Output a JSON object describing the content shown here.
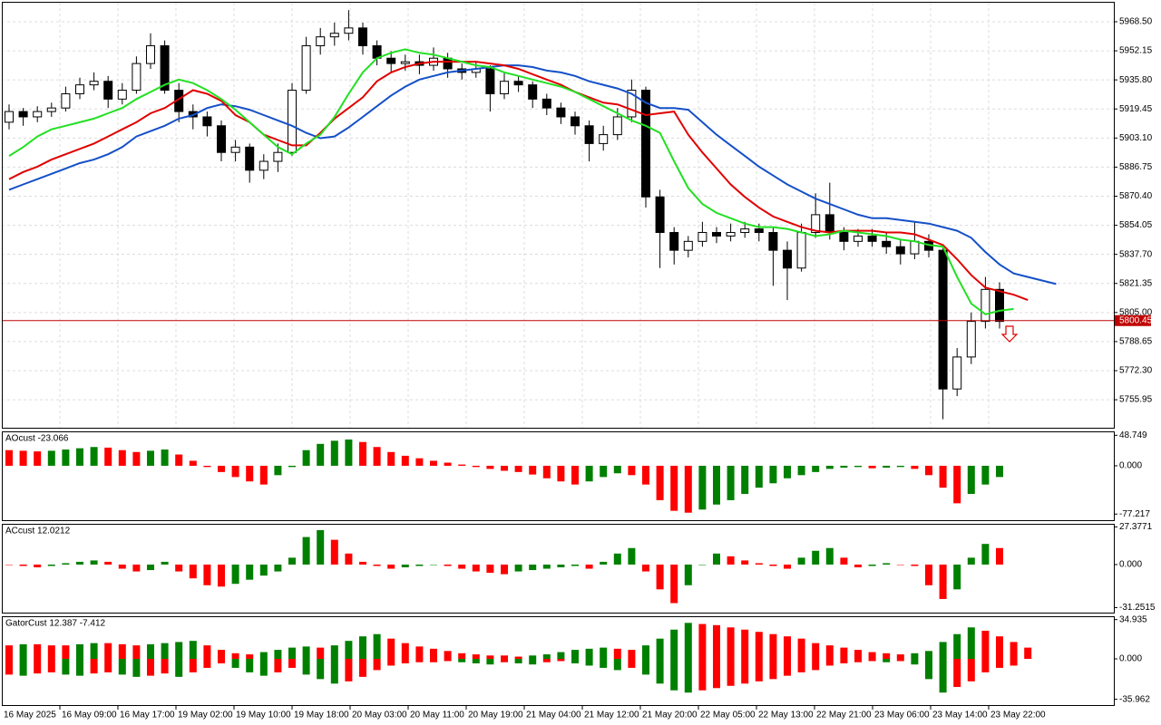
{
  "time_axis": {
    "labels": [
      "16 May 2025",
      "16 May 09:00",
      "16 May 17:00",
      "19 May 02:00",
      "19 May 10:00",
      "19 May 18:00",
      "20 May 03:00",
      "20 May 11:00",
      "20 May 19:00",
      "21 May 04:00",
      "21 May 12:00",
      "21 May 20:00",
      "22 May 05:00",
      "22 May 13:00",
      "22 May 21:00",
      "23 May 06:00",
      "23 May 14:00",
      "23 May 22:00"
    ]
  },
  "chart_data": [
    {
      "type": "candlestick",
      "open": [
        5912,
        5918,
        5915,
        5918,
        5920,
        5928,
        5933,
        5935,
        5925,
        5930,
        5945,
        5955,
        5930,
        5918,
        5915,
        5910,
        5895,
        5898,
        5885,
        5890,
        5895,
        5930,
        5955,
        5960,
        5962,
        5965,
        5955,
        5948,
        5945,
        5946,
        5944,
        5948,
        5942,
        5940,
        5942,
        5928,
        5935,
        5933,
        5925,
        5920,
        5915,
        5910,
        5900,
        5905,
        5915,
        5930,
        5870,
        5850,
        5840,
        5845,
        5850,
        5848,
        5850,
        5852,
        5850,
        5840,
        5830,
        5850,
        5860,
        5850,
        5845,
        5848,
        5845,
        5842,
        5838,
        5845,
        5840,
        5762,
        5780,
        5800,
        5818,
        null,
        null,
        null,
        null
      ],
      "high": [
        5922,
        5920,
        5921,
        5923,
        5932,
        5937,
        5940,
        5938,
        5934,
        5949,
        5962,
        5958,
        5934,
        5922,
        5918,
        5913,
        5902,
        5900,
        5894,
        5900,
        5934,
        5960,
        5965,
        5968,
        5975,
        5968,
        5958,
        5952,
        5950,
        5950,
        5954,
        5951,
        5945,
        5946,
        5944,
        5940,
        5938,
        5935,
        5928,
        5923,
        5918,
        5913,
        5910,
        5920,
        5936,
        5932,
        5874,
        5853,
        5848,
        5856,
        5853,
        5855,
        5856,
        5855,
        5853,
        5845,
        5855,
        5872,
        5878,
        5853,
        5852,
        5852,
        5850,
        5846,
        5856,
        5849,
        5843,
        5785,
        5805,
        5825,
        5822,
        null,
        null,
        null,
        null
      ],
      "low": [
        5908,
        5910,
        5912,
        5915,
        5918,
        5925,
        5930,
        5920,
        5922,
        5928,
        5942,
        5928,
        5912,
        5908,
        5904,
        5890,
        5890,
        5878,
        5880,
        5884,
        5893,
        5928,
        5950,
        5955,
        5958,
        5950,
        5944,
        5940,
        5941,
        5939,
        5941,
        5937,
        5936,
        5937,
        5918,
        5925,
        5929,
        5920,
        5916,
        5911,
        5905,
        5890,
        5896,
        5902,
        5912,
        5864,
        5830,
        5832,
        5836,
        5842,
        5844,
        5845,
        5847,
        5845,
        5820,
        5812,
        5828,
        5847,
        5846,
        5840,
        5842,
        5842,
        5838,
        5832,
        5835,
        5836,
        5745,
        5758,
        5776,
        5796,
        5796,
        null,
        null,
        null,
        null
      ],
      "close": [
        5918,
        5915,
        5918,
        5920,
        5928,
        5933,
        5935,
        5925,
        5930,
        5945,
        5955,
        5930,
        5918,
        5915,
        5910,
        5895,
        5898,
        5885,
        5890,
        5895,
        5930,
        5955,
        5960,
        5962,
        5965,
        5955,
        5948,
        5945,
        5946,
        5944,
        5948,
        5942,
        5940,
        5942,
        5928,
        5935,
        5933,
        5925,
        5920,
        5915,
        5910,
        5900,
        5905,
        5915,
        5930,
        5870,
        5850,
        5840,
        5845,
        5850,
        5848,
        5850,
        5852,
        5850,
        5840,
        5830,
        5850,
        5860,
        5850,
        5845,
        5848,
        5845,
        5842,
        5838,
        5845,
        5840,
        5762,
        5780,
        5800,
        5818,
        5800,
        null,
        null,
        null,
        null
      ],
      "up_color": "#ffffff",
      "down_color": "#000000",
      "series": [
        {
          "color": "#1450c8",
          "values": [
            5874,
            5877,
            5880,
            5883,
            5886,
            5889,
            5891,
            5894,
            5898,
            5904,
            5907,
            5910,
            5914,
            5916,
            5920,
            5922,
            5921,
            5919,
            5916,
            5913,
            5910,
            5906,
            5903,
            5904,
            5909,
            5915,
            5921,
            5927,
            5932,
            5936,
            5938,
            5940,
            5941,
            5942,
            5943,
            5944,
            5944,
            5943,
            5941,
            5940,
            5938,
            5935,
            5933,
            5931,
            5928,
            5923,
            5920,
            5920,
            5919,
            5912,
            5905,
            5899,
            5893,
            5887,
            5882,
            5877,
            5873,
            5869,
            5866,
            5863,
            5860,
            5858,
            5858,
            5857,
            5856,
            5855,
            5853,
            5851,
            5847,
            5839,
            5832,
            5827,
            5825,
            5823,
            5821
          ]
        },
        {
          "color": "#e00000",
          "values": [
            5880,
            5884,
            5887,
            5891,
            5894,
            5897,
            5900,
            5904,
            5908,
            5912,
            5917,
            5920,
            5925,
            5930,
            5928,
            5924,
            5916,
            5912,
            5905,
            5902,
            5899,
            5899,
            5906,
            5914,
            5920,
            5926,
            5935,
            5940,
            5943,
            5945,
            5946,
            5946,
            5946,
            5946,
            5945,
            5944,
            5942,
            5939,
            5936,
            5933,
            5929,
            5926,
            5923,
            5922,
            5919,
            5916,
            5917,
            5918,
            5905,
            5895,
            5886,
            5877,
            5870,
            5864,
            5859,
            5856,
            5853,
            5851,
            5850,
            5851,
            5851,
            5851,
            5850,
            5850,
            5849,
            5846,
            5843,
            5835,
            5826,
            5819,
            5817,
            5815,
            5812,
            null,
            null
          ]
        },
        {
          "color": "#22e022",
          "values": [
            5893,
            5898,
            5904,
            5908,
            5910,
            5912,
            5914,
            5917,
            5920,
            5925,
            5929,
            5933,
            5936,
            5934,
            5930,
            5925,
            5919,
            5912,
            5905,
            5898,
            5894,
            5900,
            5905,
            5915,
            5928,
            5940,
            5948,
            5951,
            5953,
            5951,
            5950,
            5948,
            5946,
            5944,
            5943,
            5940,
            5938,
            5936,
            5934,
            5932,
            5929,
            5925,
            5921,
            5917,
            5913,
            5910,
            5906,
            5890,
            5875,
            5866,
            5861,
            5858,
            5855,
            5853,
            5853,
            5852,
            5850,
            5848,
            5849,
            5851,
            5850,
            5849,
            5848,
            5846,
            5845,
            5843,
            5842,
            5825,
            5810,
            5804,
            5806,
            5807,
            null,
            null,
            null
          ]
        }
      ],
      "ylim": [
        5740.2,
        5979.7
      ],
      "yticks": [
        {
          "value": 5968.5,
          "label": "5968.50"
        },
        5952.15,
        {
          "value": 5935.8,
          "label": "5935.80"
        },
        5919.45,
        {
          "value": 5903.1,
          "label": "5903.10"
        },
        5886.75,
        {
          "value": 5870.4,
          "label": "5870.40"
        },
        5854.05,
        {
          "value": 5837.7,
          "label": "5837.70"
        },
        5821.35,
        {
          "value": 5805,
          "label": "5805.00"
        },
        5788.65,
        {
          "value": 5772.3,
          "label": "5772.30"
        },
        5755.95
      ],
      "grid": true,
      "current_price": 5800.45,
      "current_price_color": "#c00000"
    },
    {
      "type": "histogram",
      "title": "AOcust -23.066",
      "values": [
        25,
        24,
        23,
        24,
        26,
        28,
        30,
        29,
        25,
        22,
        24,
        26,
        18,
        8,
        -2,
        -10,
        -18,
        -25,
        -30,
        -15,
        -2,
        25,
        35,
        40,
        42,
        38,
        30,
        22,
        16,
        12,
        8,
        5,
        2,
        -2,
        -5,
        -8,
        -10,
        -14,
        -20,
        -25,
        -30,
        -25,
        -18,
        -12,
        -15,
        -30,
        -55,
        -72,
        -75,
        -70,
        -62,
        -55,
        -45,
        -35,
        -28,
        -20,
        -15,
        -10,
        -5,
        -3,
        -2,
        -4,
        -3,
        -2,
        -5,
        -15,
        -35,
        -60,
        -45,
        -30,
        -18
      ],
      "up_color": "#008000",
      "down_color": "#ff0000",
      "ylim": [
        -87,
        55
      ],
      "yticks": [
        48.749,
        {
          "value": 0,
          "label": "0.000"
        },
        -77.217
      ]
    },
    {
      "type": "histogram",
      "title": "ACcust 12.0212",
      "values": [
        0,
        -1,
        -2,
        -1,
        1,
        2,
        3,
        2,
        -3,
        -5,
        -4,
        2,
        -5,
        -10,
        -15,
        -16,
        -14,
        -11,
        -8,
        -5,
        5,
        20,
        25,
        18,
        8,
        2,
        -1,
        -3,
        -2,
        -1,
        0,
        -1,
        -3,
        -5,
        -6,
        -7,
        -5,
        -4,
        -3,
        -2,
        -1,
        -3,
        2,
        8,
        12,
        -5,
        -18,
        -28,
        -15,
        0,
        8,
        6,
        3,
        1,
        -1,
        -3,
        5,
        10,
        12,
        5,
        -2,
        -1,
        1,
        0,
        -1,
        -15,
        -25,
        -18,
        5,
        15,
        12
      ],
      "up_color": "#008000",
      "down_color": "#ff0000",
      "ylim": [
        -34.9,
        29.6
      ],
      "yticks": [
        27.3771,
        {
          "value": 0,
          "label": "0.000"
        },
        -31.2515
      ]
    },
    {
      "type": "gator",
      "title": "GatorCust 12.387 -7.412",
      "upper": [
        12,
        13,
        13,
        12,
        12,
        13,
        14,
        14,
        13,
        12,
        13,
        14,
        15,
        16,
        12,
        8,
        5,
        4,
        6,
        8,
        10,
        11,
        10,
        12,
        16,
        20,
        22,
        18,
        14,
        11,
        9,
        7,
        5,
        4,
        3,
        3,
        2,
        3,
        4,
        6,
        8,
        9,
        10,
        9,
        8,
        12,
        18,
        26,
        32,
        31,
        30,
        28,
        26,
        24,
        22,
        20,
        18,
        14,
        12,
        10,
        8,
        6,
        5,
        4,
        5,
        7,
        15,
        22,
        28,
        25,
        20,
        15,
        10
      ],
      "lower": [
        -14,
        -15,
        -13,
        -12,
        -14,
        -15,
        -13,
        -12,
        -14,
        -16,
        -15,
        -13,
        -16,
        -12,
        -8,
        -4,
        -8,
        -12,
        -15,
        -12,
        -8,
        -14,
        -18,
        -22,
        -20,
        -16,
        -10,
        -6,
        -4,
        -3,
        -3,
        -2,
        -3,
        -4,
        -5,
        -3,
        -4,
        -5,
        -3,
        -2,
        -4,
        -6,
        -8,
        -10,
        -8,
        -14,
        -22,
        -28,
        -30,
        -28,
        -26,
        -24,
        -22,
        -20,
        -18,
        -15,
        -12,
        -10,
        -6,
        -4,
        -3,
        -2,
        -3,
        -2,
        -5,
        -18,
        -30,
        -25,
        -20,
        -12,
        -8,
        -6,
        null
      ],
      "up_color": "#008000",
      "down_color": "#ff0000",
      "ylim": [
        -41.1,
        37.9
      ],
      "yticks": [
        34.935,
        {
          "value": 0,
          "label": "0.000"
        },
        -35.962
      ]
    }
  ]
}
